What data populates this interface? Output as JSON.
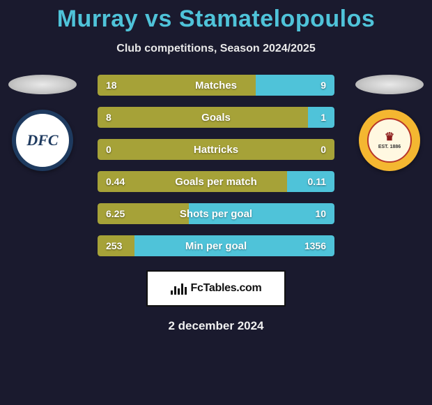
{
  "header": {
    "title": "Murray vs Stamatelopoulos",
    "subtitle": "Club competitions, Season 2024/2025",
    "title_color": "#4fc3d9"
  },
  "colors": {
    "left_bar": "#a6a238",
    "right_bar": "#4fc3d9",
    "background": "#1a1a2e"
  },
  "badges": {
    "left": {
      "text": "DFC",
      "border_color": "#1e3a5f"
    },
    "right": {
      "top_text": "MOTHERWELL FC",
      "est_text": "EST. 1886",
      "border_color": "#f4b731"
    }
  },
  "stats": [
    {
      "label": "Matches",
      "left_val": "18",
      "right_val": "9",
      "left_pct": 66.7,
      "right_pct": 33.3
    },
    {
      "label": "Goals",
      "left_val": "8",
      "right_val": "1",
      "left_pct": 88.9,
      "right_pct": 11.1
    },
    {
      "label": "Hattricks",
      "left_val": "0",
      "right_val": "0",
      "left_pct": 100,
      "right_pct": 0
    },
    {
      "label": "Goals per match",
      "left_val": "0.44",
      "right_val": "0.11",
      "left_pct": 80.0,
      "right_pct": 20.0
    },
    {
      "label": "Shots per goal",
      "left_val": "6.25",
      "right_val": "10",
      "left_pct": 38.5,
      "right_pct": 61.5
    },
    {
      "label": "Min per goal",
      "left_val": "253",
      "right_val": "1356",
      "left_pct": 15.7,
      "right_pct": 84.3
    }
  ],
  "footer": {
    "brand": "FcTables.com",
    "date": "2 december 2024"
  }
}
